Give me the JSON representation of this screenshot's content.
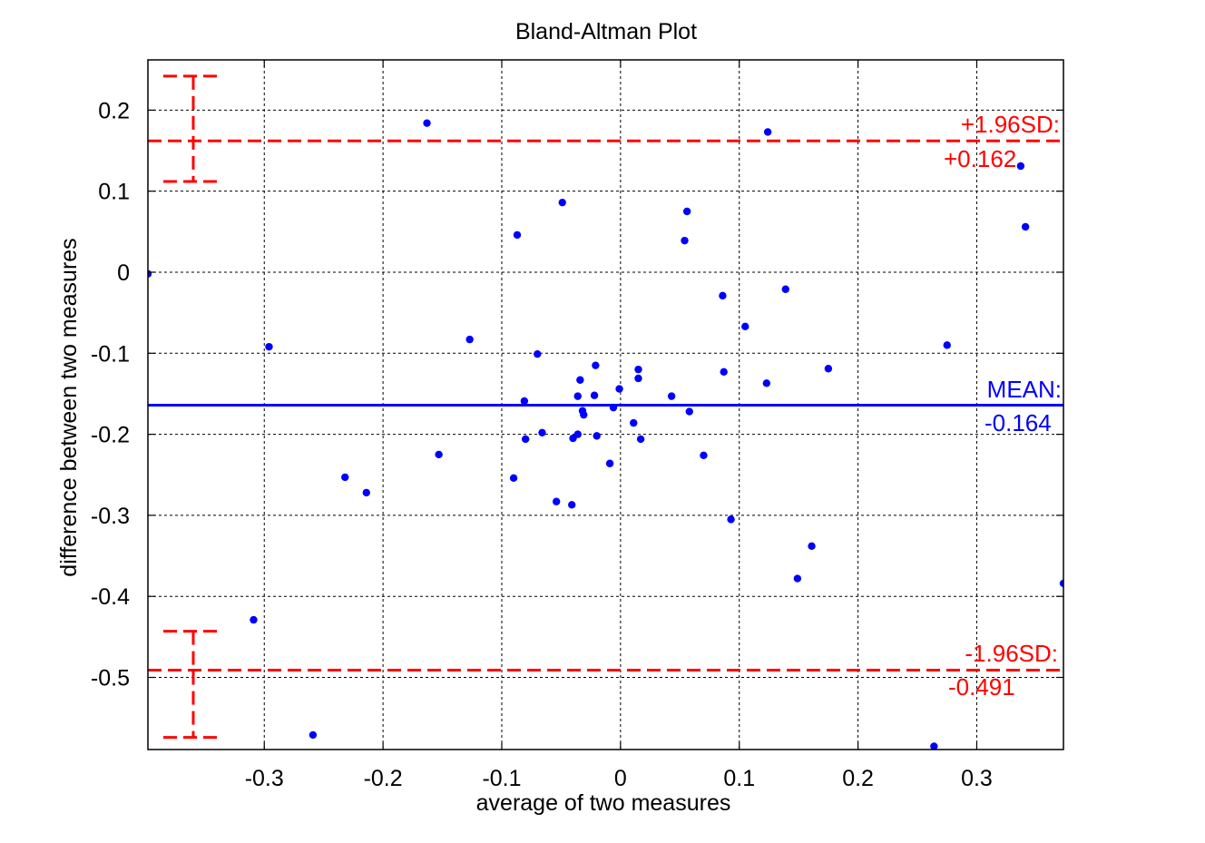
{
  "chart_data": {
    "type": "scatter",
    "title": "Bland-Altman Plot",
    "xlabel": "average of two measures",
    "ylabel": "difference between two measures",
    "xlim": [
      -0.398,
      0.373
    ],
    "ylim": [
      -0.589,
      0.262
    ],
    "x_ticks": [
      -0.3,
      -0.2,
      -0.1,
      0,
      0.1,
      0.2,
      0.3
    ],
    "y_ticks": [
      0.2,
      0.1,
      0,
      -0.1,
      -0.2,
      -0.3,
      -0.4,
      -0.5
    ],
    "x_tick_labels": [
      "-0.3",
      "-0.2",
      "-0.1",
      "0",
      "0.1",
      "0.2",
      "0.3"
    ],
    "y_tick_labels": [
      "0.2",
      "0.1",
      "0",
      "-0.1",
      "-0.2",
      "-0.3",
      "-0.4",
      "-0.5"
    ],
    "grid": true,
    "point_color": "#0000ff",
    "mean_color": "#0000ff",
    "limit_color": "#ff0000",
    "mean": {
      "value": -0.164,
      "label_line1": "MEAN:",
      "label_line2": "-0.164"
    },
    "upper_limit": {
      "value": 0.162,
      "label_line1": "+1.96SD:",
      "label_line2": "+0.162",
      "ci": [
        0.112,
        0.242
      ]
    },
    "lower_limit": {
      "value": -0.491,
      "label_line1": "-1.96SD:",
      "label_line2": "-0.491",
      "ci": [
        -0.574,
        -0.443
      ]
    },
    "points": [
      {
        "x": -0.398,
        "y": -0.002
      },
      {
        "x": -0.296,
        "y": -0.092
      },
      {
        "x": -0.309,
        "y": -0.429
      },
      {
        "x": -0.259,
        "y": -0.571
      },
      {
        "x": -0.232,
        "y": -0.253
      },
      {
        "x": -0.214,
        "y": -0.272
      },
      {
        "x": -0.163,
        "y": 0.184
      },
      {
        "x": -0.153,
        "y": -0.225
      },
      {
        "x": -0.127,
        "y": -0.083
      },
      {
        "x": -0.087,
        "y": 0.046
      },
      {
        "x": -0.09,
        "y": -0.254
      },
      {
        "x": -0.081,
        "y": -0.159
      },
      {
        "x": -0.08,
        "y": -0.206
      },
      {
        "x": -0.07,
        "y": -0.101
      },
      {
        "x": -0.066,
        "y": -0.198
      },
      {
        "x": -0.049,
        "y": 0.086
      },
      {
        "x": -0.054,
        "y": -0.283
      },
      {
        "x": -0.041,
        "y": -0.287
      },
      {
        "x": -0.04,
        "y": -0.205
      },
      {
        "x": -0.036,
        "y": -0.153
      },
      {
        "x": -0.036,
        "y": -0.2
      },
      {
        "x": -0.034,
        "y": -0.133
      },
      {
        "x": -0.032,
        "y": -0.171
      },
      {
        "x": -0.031,
        "y": -0.176
      },
      {
        "x": -0.022,
        "y": -0.152
      },
      {
        "x": -0.021,
        "y": -0.115
      },
      {
        "x": -0.02,
        "y": -0.202
      },
      {
        "x": -0.009,
        "y": -0.236
      },
      {
        "x": -0.006,
        "y": -0.167
      },
      {
        "x": -0.001,
        "y": -0.144
      },
      {
        "x": 0.011,
        "y": -0.186
      },
      {
        "x": 0.015,
        "y": -0.12
      },
      {
        "x": 0.015,
        "y": -0.131
      },
      {
        "x": 0.017,
        "y": -0.206
      },
      {
        "x": 0.043,
        "y": -0.153
      },
      {
        "x": 0.054,
        "y": 0.039
      },
      {
        "x": 0.056,
        "y": 0.075
      },
      {
        "x": 0.058,
        "y": -0.172
      },
      {
        "x": 0.07,
        "y": -0.226
      },
      {
        "x": 0.086,
        "y": -0.029
      },
      {
        "x": 0.087,
        "y": -0.123
      },
      {
        "x": 0.093,
        "y": -0.305
      },
      {
        "x": 0.105,
        "y": -0.067
      },
      {
        "x": 0.123,
        "y": -0.137
      },
      {
        "x": 0.124,
        "y": 0.173
      },
      {
        "x": 0.139,
        "y": -0.021
      },
      {
        "x": 0.149,
        "y": -0.378
      },
      {
        "x": 0.161,
        "y": -0.338
      },
      {
        "x": 0.175,
        "y": -0.119
      },
      {
        "x": 0.264,
        "y": -0.585
      },
      {
        "x": 0.275,
        "y": -0.09
      },
      {
        "x": 0.337,
        "y": 0.131
      },
      {
        "x": 0.341,
        "y": 0.056
      },
      {
        "x": 0.373,
        "y": -0.384
      }
    ]
  }
}
